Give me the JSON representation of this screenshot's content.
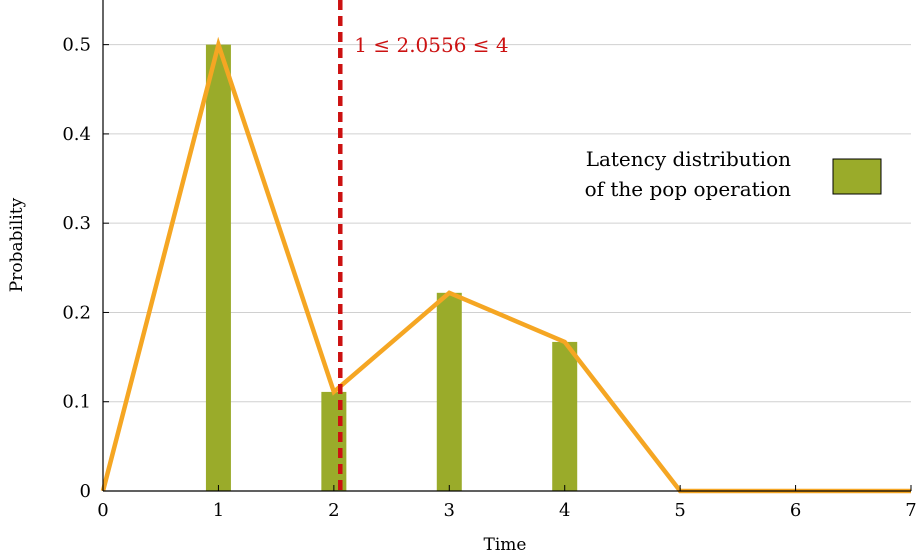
{
  "chart_data": {
    "type": "bar",
    "xlabel": "Time",
    "ylabel": "Probability",
    "xlim": [
      0,
      7
    ],
    "ylim": [
      0,
      0.55
    ],
    "x_ticks": [
      "0",
      "1",
      "2",
      "3",
      "4",
      "5",
      "6",
      "7"
    ],
    "y_ticks": [
      "0",
      "0.1",
      "0.2",
      "0.3",
      "0.4",
      "0.5"
    ],
    "grid": "horizontal",
    "series": [
      {
        "name": "Latency distribution of the pop operation",
        "kind": "bar",
        "color": "#9aab2a",
        "x": [
          1,
          2,
          3,
          4
        ],
        "values": [
          0.5,
          0.111,
          0.222,
          0.167
        ]
      },
      {
        "kind": "line",
        "color": "#f5a623",
        "x": [
          0,
          1,
          2,
          3,
          4,
          5,
          6,
          7
        ],
        "values": [
          0,
          0.5,
          0.111,
          0.222,
          0.167,
          0,
          0,
          0
        ]
      }
    ],
    "marker": {
      "x": 2.0556,
      "color": "#cc1111",
      "label": "1 ≤ 2.0556 ≤ 4"
    },
    "legend": {
      "placement": "right",
      "lines": [
        "Latency distribution",
        "of the pop operation"
      ]
    }
  }
}
